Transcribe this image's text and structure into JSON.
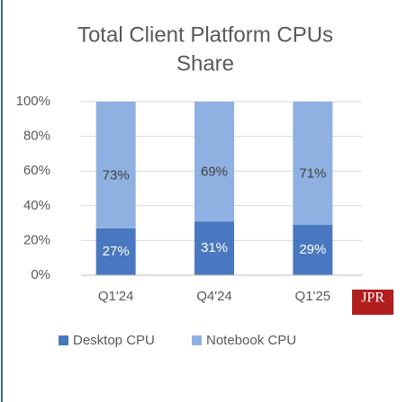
{
  "chart_data": {
    "type": "stacked_bar",
    "title_lines": [
      "Total Client Platform CPUs",
      "Share"
    ],
    "categories": [
      "Q1'24",
      "Q4'24",
      "Q1'25"
    ],
    "series": [
      {
        "name": "Desktop CPU",
        "color": "#4a78c0",
        "values": [
          27,
          31,
          29
        ],
        "value_labels": [
          "27%",
          "31%",
          "29%"
        ]
      },
      {
        "name": "Notebook CPU",
        "color": "#8fb1e1",
        "values": [
          73,
          69,
          71
        ],
        "value_labels": [
          "73%",
          "69%",
          "71%"
        ]
      }
    ],
    "ylim": [
      0,
      100
    ],
    "yticks": [
      {
        "value": 0,
        "label": "0%"
      },
      {
        "value": 20,
        "label": "20%"
      },
      {
        "value": 40,
        "label": "40%"
      },
      {
        "value": 60,
        "label": "60%"
      },
      {
        "value": 80,
        "label": "80%"
      },
      {
        "value": 100,
        "label": "100%"
      }
    ],
    "grid": true,
    "legend": "bottom",
    "logo": "JPR"
  }
}
